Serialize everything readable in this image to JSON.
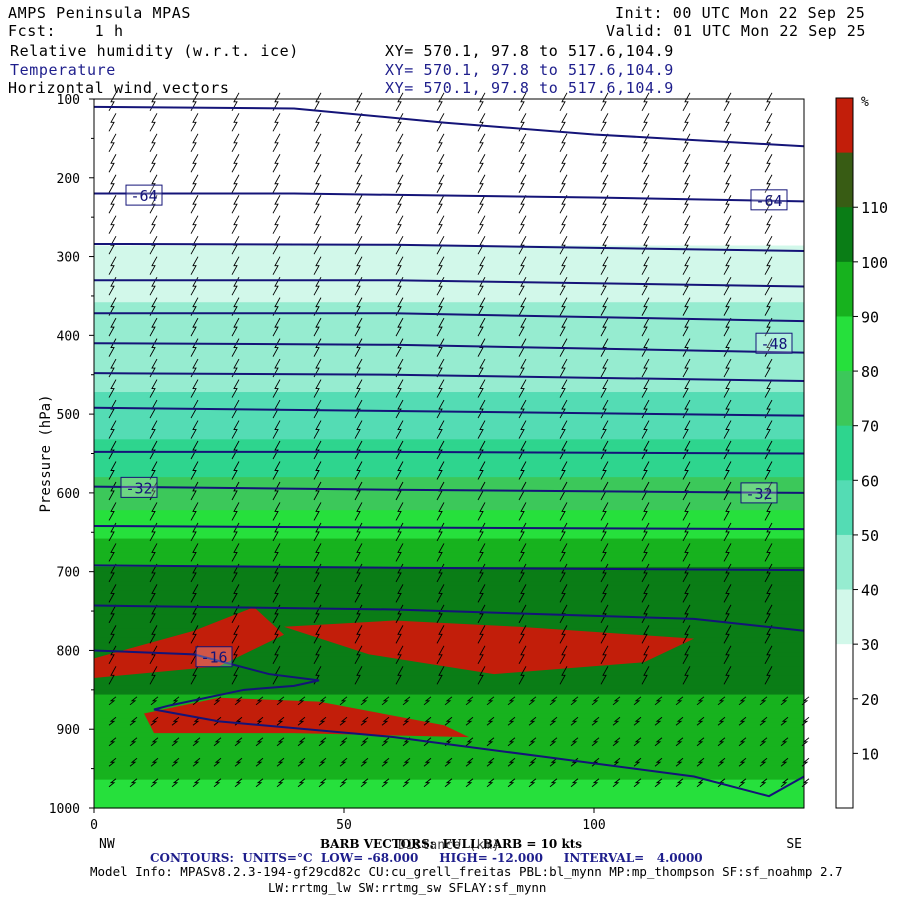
{
  "header": {
    "title": "AMPS Peninsula MPAS",
    "fcst": "Fcst:    1 h",
    "init": "Init: 00 UTC Mon 22 Sep 25",
    "valid": "Valid: 01 UTC Mon 22 Sep 25",
    "fields": [
      {
        "name": "Relative humidity (w.r.t. ice)",
        "xy": "XY= 570.1, 97.8 to 517.6,104.9"
      },
      {
        "name": "Temperature",
        "xy": "XY= 570.1, 97.8 to 517.6,104.9"
      },
      {
        "name": "Horizontal wind vectors",
        "xy": "XY= 570.1, 97.8 to 517.6,104.9"
      }
    ]
  },
  "colors": {
    "bins": [
      "#ffffff",
      "#ffffff",
      "#ffffff",
      "#d2f8ea",
      "#96ecd0",
      "#54dcb4",
      "#2ed58e",
      "#3cc85a",
      "#26e03c",
      "#17b21e",
      "#0a7d16",
      "#385c14",
      "#c21e0a"
    ],
    "temp_line": "#141478"
  },
  "chart_data": {
    "type": "heatmap",
    "title": "Relative humidity (w.r.t. ice)",
    "xlabel": "Distance (km)",
    "ylabel": "Pressure (hPa)",
    "x_range": [
      0,
      142
    ],
    "y_range": [
      1000,
      100
    ],
    "x_ticks": [
      0,
      50,
      100
    ],
    "y_ticks": [
      100,
      200,
      300,
      400,
      500,
      600,
      700,
      800,
      900,
      1000
    ],
    "x_end_labels": {
      "left": "NW",
      "right": "SE"
    },
    "colorbar": {
      "unit": "%",
      "levels": [
        10,
        20,
        30,
        40,
        50,
        60,
        70,
        80,
        90,
        100,
        110
      ],
      "colors": [
        "#ffffff",
        "#ffffff",
        "#ffffff",
        "#d2f8ea",
        "#96ecd0",
        "#54dcb4",
        "#2ed58e",
        "#3cc85a",
        "#26e03c",
        "#17b21e",
        "#0a7d16",
        "#385c14",
        "#c21e0a"
      ]
    },
    "rh_bands": [
      {
        "p": 100,
        "rh": 5
      },
      {
        "p": 260,
        "rh": 15
      },
      {
        "p": 290,
        "rh": 35
      },
      {
        "p": 380,
        "rh": 42
      },
      {
        "p": 460,
        "rh": 48
      },
      {
        "p": 560,
        "rh": 65
      },
      {
        "p": 640,
        "rh": 85
      },
      {
        "p": 700,
        "rh": 102
      },
      {
        "p": 800,
        "rh": 102
      },
      {
        "p": 900,
        "rh": 98
      },
      {
        "p": 1000,
        "rh": 85
      }
    ],
    "temperature_contours": {
      "units": "°C",
      "low": -68.0,
      "high": -12.0,
      "interval": 4.0,
      "labels": [
        {
          "value": "-64",
          "x": 10,
          "p": 222
        },
        {
          "value": "-64",
          "x": 135,
          "p": 228
        },
        {
          "value": "-48",
          "x": 136,
          "p": 410
        },
        {
          "value": "-32",
          "x": 9,
          "p": 593
        },
        {
          "value": "-32",
          "x": 133,
          "p": 600
        },
        {
          "value": "-16",
          "x": 24,
          "p": 808
        }
      ],
      "lines": [
        {
          "x": [
            0,
            40,
            70,
            100,
            142
          ],
          "p": [
            110,
            112,
            130,
            145,
            160
          ]
        },
        {
          "x": [
            0,
            40,
            100,
            142
          ],
          "p": [
            220,
            220,
            225,
            230
          ]
        },
        {
          "x": [
            0,
            60,
            142
          ],
          "p": [
            284,
            285,
            293
          ]
        },
        {
          "x": [
            0,
            60,
            142
          ],
          "p": [
            330,
            330,
            338
          ]
        },
        {
          "x": [
            0,
            60,
            142
          ],
          "p": [
            372,
            372,
            382
          ]
        },
        {
          "x": [
            0,
            60,
            142
          ],
          "p": [
            410,
            412,
            422
          ]
        },
        {
          "x": [
            0,
            60,
            142
          ],
          "p": [
            448,
            450,
            458
          ]
        },
        {
          "x": [
            0,
            60,
            142
          ],
          "p": [
            492,
            496,
            502
          ]
        },
        {
          "x": [
            0,
            60,
            142
          ],
          "p": [
            548,
            548,
            550
          ]
        },
        {
          "x": [
            0,
            60,
            142
          ],
          "p": [
            592,
            596,
            600
          ]
        },
        {
          "x": [
            0,
            60,
            142
          ],
          "p": [
            642,
            644,
            646
          ]
        },
        {
          "x": [
            0,
            60,
            142
          ],
          "p": [
            692,
            695,
            698
          ]
        },
        {
          "x": [
            0,
            60,
            120,
            142
          ],
          "p": [
            743,
            748,
            760,
            775
          ]
        },
        {
          "x": [
            0,
            20,
            35,
            45,
            40,
            30,
            15,
            12,
            25,
            60,
            90,
            120,
            135,
            142
          ],
          "p": [
            800,
            805,
            830,
            838,
            845,
            850,
            870,
            875,
            890,
            910,
            935,
            960,
            985,
            960
          ]
        }
      ]
    },
    "wind_barbs": {
      "note": "FULL BARB = 10 kts"
    }
  },
  "footer": {
    "barb_line": "BARB VECTORS:  FULL BARB = 10 kts",
    "xlabel_overlay": "Distance (km)",
    "contours_line": "CONTOURS:  UNITS=°C  LOW= -68.000     HIGH= -12.000     INTERVAL=   4.0000",
    "model_info": "Model Info: MPASv8.2.3-194-gf29cd82c CU:cu_grell_freitas PBL:bl_mynn MP:mp_thompson SF:sf_noahmp 2.7",
    "model_info2": "LW:rrtmg_lw SW:rrtmg_sw SFLAY:sf_mynn"
  }
}
